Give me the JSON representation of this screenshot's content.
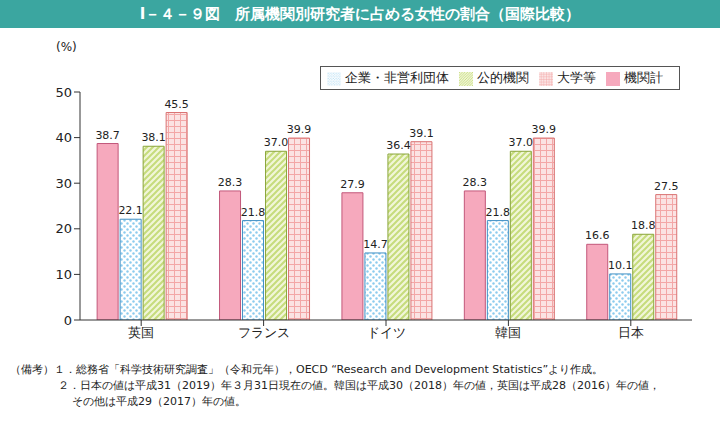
{
  "chart_data": {
    "type": "bar",
    "title": "Ⅰ－４－９図　所属機関別研究者に占める女性の割合（国際比較）",
    "y_label": "(%)",
    "categories": [
      "英国",
      "フランス",
      "ドイツ",
      "韓国",
      "日本"
    ],
    "series": [
      {
        "name": "機関計",
        "color": "#f6a9bd",
        "values": [
          38.7,
          28.3,
          27.9,
          28.3,
          16.6
        ],
        "value_labels": [
          "38.7",
          "28.3",
          "27.9",
          "28.3",
          "16.6"
        ]
      },
      {
        "name": "企業・非営利団体",
        "color": "#8ccbee",
        "values": [
          22.1,
          21.8,
          14.7,
          21.8,
          10.1
        ],
        "value_labels": [
          "22.1",
          "21.8",
          "14.7",
          "21.8",
          "10.1"
        ]
      },
      {
        "name": "公的機関",
        "color": "#c6dc7c",
        "values": [
          38.1,
          37.0,
          36.4,
          37.0,
          18.8
        ],
        "value_labels": [
          "38.1",
          "37.0",
          "36.4",
          "37.0",
          "18.8"
        ]
      },
      {
        "name": "大学等",
        "color": "#f3a7a7",
        "values": [
          45.5,
          39.9,
          39.1,
          39.9,
          27.5
        ],
        "value_labels": [
          "45.5",
          "39.9",
          "39.1",
          "39.9",
          "27.5"
        ]
      }
    ],
    "ylim": [
      0,
      50
    ],
    "yticks": [
      0,
      10,
      20,
      30,
      40,
      50
    ],
    "grid": false,
    "legend": "upper right",
    "data_labels": true,
    "annotations": [
      "（備考）１．総務省「科学技術研究調査」（令和元年），OECD “Research and Development Statistics”より作成。",
      "２．日本の値は平成31（2019）年３月31日現在の値。韓国は平成30（2018）年の値，英国は平成28（2016）年の値，",
      "その他は平成29（2017）年の値。"
    ]
  }
}
